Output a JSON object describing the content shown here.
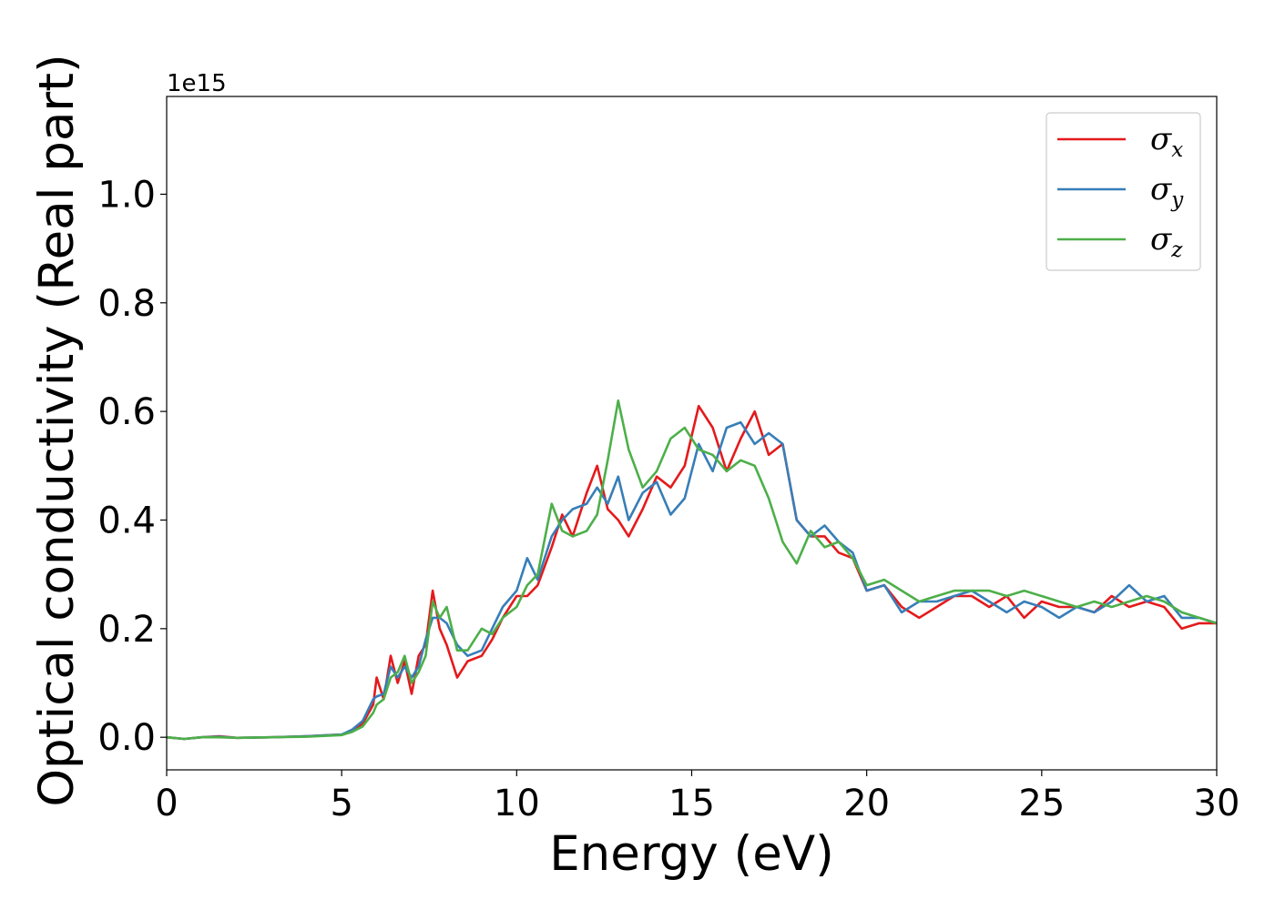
{
  "chart_data": {
    "type": "line",
    "title": "",
    "xlabel": "Energy (eV)",
    "ylabel": "Optical conductivity (Real part)",
    "y_offset_label": "1e15",
    "xlim": [
      0,
      30
    ],
    "ylim": [
      -0.06,
      1.18
    ],
    "xticks": [
      0,
      5,
      10,
      15,
      20,
      25,
      30
    ],
    "xtick_labels": [
      "0",
      "5",
      "10",
      "15",
      "20",
      "25",
      "30"
    ],
    "yticks": [
      0.0,
      0.2,
      0.4,
      0.6,
      0.8,
      1.0
    ],
    "ytick_labels": [
      "0.0",
      "0.2",
      "0.4",
      "0.6",
      "0.8",
      "1.0"
    ],
    "grid": false,
    "legend_position": "top-right",
    "x": [
      0,
      0.5,
      1,
      1.5,
      2,
      3,
      4,
      5,
      5.3,
      5.6,
      5.9,
      6.0,
      6.2,
      6.4,
      6.6,
      6.8,
      7.0,
      7.2,
      7.4,
      7.6,
      7.8,
      8.0,
      8.3,
      8.6,
      9.0,
      9.3,
      9.6,
      10.0,
      10.3,
      10.6,
      11.0,
      11.3,
      11.6,
      12.0,
      12.3,
      12.6,
      12.9,
      13.2,
      13.6,
      14.0,
      14.4,
      14.8,
      15.2,
      15.6,
      16.0,
      16.4,
      16.8,
      17.2,
      17.6,
      18.0,
      18.4,
      18.8,
      19.2,
      19.6,
      20.0,
      20.5,
      21.0,
      21.5,
      22.0,
      22.5,
      23.0,
      23.5,
      24.0,
      24.5,
      25.0,
      25.5,
      26.0,
      26.5,
      27.0,
      27.5,
      28.0,
      28.5,
      29.0,
      29.5,
      30.0
    ],
    "series": [
      {
        "name": "x",
        "color": "#e41a1c",
        "values": [
          0.0,
          -0.003,
          0.0,
          0.002,
          -0.001,
          0.0,
          0.002,
          0.005,
          0.012,
          0.025,
          0.06,
          0.11,
          0.07,
          0.15,
          0.1,
          0.14,
          0.08,
          0.15,
          0.17,
          0.27,
          0.2,
          0.17,
          0.11,
          0.14,
          0.15,
          0.18,
          0.22,
          0.26,
          0.26,
          0.28,
          0.35,
          0.41,
          0.37,
          0.45,
          0.5,
          0.42,
          0.4,
          0.37,
          0.42,
          0.48,
          0.46,
          0.5,
          0.61,
          0.57,
          0.49,
          0.55,
          0.6,
          0.52,
          0.54,
          0.4,
          0.37,
          0.37,
          0.34,
          0.33,
          0.27,
          0.28,
          0.24,
          0.22,
          0.24,
          0.26,
          0.26,
          0.24,
          0.26,
          0.22,
          0.25,
          0.24,
          0.24,
          0.23,
          0.26,
          0.24,
          0.25,
          0.24,
          0.2,
          0.21,
          0.21
        ]
      },
      {
        "name": "y",
        "color": "#377eb8",
        "values": [
          0.0,
          -0.003,
          0.0,
          0.001,
          -0.001,
          0.0,
          0.002,
          0.005,
          0.014,
          0.03,
          0.07,
          0.075,
          0.08,
          0.13,
          0.11,
          0.13,
          0.11,
          0.13,
          0.18,
          0.22,
          0.22,
          0.21,
          0.17,
          0.15,
          0.16,
          0.2,
          0.24,
          0.27,
          0.33,
          0.29,
          0.37,
          0.4,
          0.42,
          0.43,
          0.46,
          0.43,
          0.48,
          0.4,
          0.45,
          0.47,
          0.41,
          0.44,
          0.54,
          0.49,
          0.57,
          0.58,
          0.54,
          0.56,
          0.54,
          0.4,
          0.37,
          0.39,
          0.36,
          0.34,
          0.27,
          0.28,
          0.23,
          0.25,
          0.25,
          0.26,
          0.27,
          0.25,
          0.23,
          0.25,
          0.24,
          0.22,
          0.24,
          0.23,
          0.25,
          0.28,
          0.25,
          0.26,
          0.22,
          0.22,
          0.21
        ]
      },
      {
        "name": "z",
        "color": "#4daf4a",
        "values": [
          0.0,
          -0.003,
          0.0,
          0.0,
          -0.001,
          0.0,
          0.001,
          0.004,
          0.01,
          0.02,
          0.045,
          0.06,
          0.07,
          0.11,
          0.12,
          0.15,
          0.1,
          0.12,
          0.15,
          0.25,
          0.22,
          0.24,
          0.16,
          0.16,
          0.2,
          0.19,
          0.22,
          0.24,
          0.28,
          0.3,
          0.43,
          0.38,
          0.37,
          0.38,
          0.41,
          0.51,
          0.62,
          0.53,
          0.46,
          0.49,
          0.55,
          0.57,
          0.53,
          0.52,
          0.49,
          0.51,
          0.5,
          0.44,
          0.36,
          0.32,
          0.38,
          0.35,
          0.36,
          0.33,
          0.28,
          0.29,
          0.27,
          0.25,
          0.26,
          0.27,
          0.27,
          0.27,
          0.26,
          0.27,
          0.26,
          0.25,
          0.24,
          0.25,
          0.24,
          0.25,
          0.26,
          0.25,
          0.23,
          0.22,
          0.21
        ]
      }
    ]
  }
}
